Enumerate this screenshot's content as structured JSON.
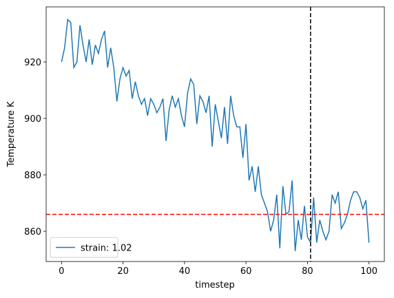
{
  "chart_data": {
    "type": "line",
    "x_label": "timestep",
    "y_label": "Temperature K",
    "x": [
      0,
      1,
      2,
      3,
      4,
      5,
      6,
      7,
      8,
      9,
      10,
      11,
      12,
      13,
      14,
      15,
      16,
      17,
      18,
      19,
      20,
      21,
      22,
      23,
      24,
      25,
      26,
      27,
      28,
      29,
      30,
      31,
      32,
      33,
      34,
      35,
      36,
      37,
      38,
      39,
      40,
      41,
      42,
      43,
      44,
      45,
      46,
      47,
      48,
      49,
      50,
      51,
      52,
      53,
      54,
      55,
      56,
      57,
      58,
      59,
      60,
      61,
      62,
      63,
      64,
      65,
      66,
      67,
      68,
      69,
      70,
      71,
      72,
      73,
      74,
      75,
      76,
      77,
      78,
      79,
      80,
      81,
      82,
      83,
      84,
      85,
      86,
      87,
      88,
      89,
      90,
      91,
      92,
      93,
      94,
      95,
      96,
      97,
      98,
      99,
      100
    ],
    "series": [
      {
        "name": "strain: 1.02",
        "color": "#1f77b4",
        "values": [
          920,
          925,
          935,
          934,
          918,
          920,
          933,
          926,
          920,
          928,
          919,
          926,
          923,
          928,
          931,
          918,
          925,
          918,
          906,
          914,
          918,
          915,
          917,
          907,
          913,
          908,
          905,
          907,
          901,
          907,
          905,
          902,
          904,
          907,
          892,
          903,
          908,
          904,
          907,
          901,
          897,
          909,
          914,
          912,
          898,
          908,
          906,
          902,
          908,
          890,
          905,
          899,
          893,
          904,
          891,
          908,
          901,
          897,
          897,
          886,
          898,
          878,
          883,
          874,
          883,
          873,
          870,
          867,
          860,
          864,
          873,
          854,
          876,
          866,
          867,
          878,
          853,
          864,
          857,
          869,
          858,
          856,
          872,
          856,
          864,
          860,
          857,
          860,
          873,
          870,
          874,
          861,
          863,
          866,
          871,
          874,
          874,
          872,
          868,
          871,
          856
        ]
      }
    ],
    "xlim": [
      -5,
      105
    ],
    "ylim": [
      849.3,
      939.5
    ],
    "xticks": [
      0,
      20,
      40,
      60,
      80,
      100
    ],
    "yticks": [
      860,
      880,
      900,
      920
    ],
    "vline": 81,
    "vline_color": "#000000",
    "hline": 866,
    "hline_color": "#ff0000",
    "legend": "lower left"
  }
}
